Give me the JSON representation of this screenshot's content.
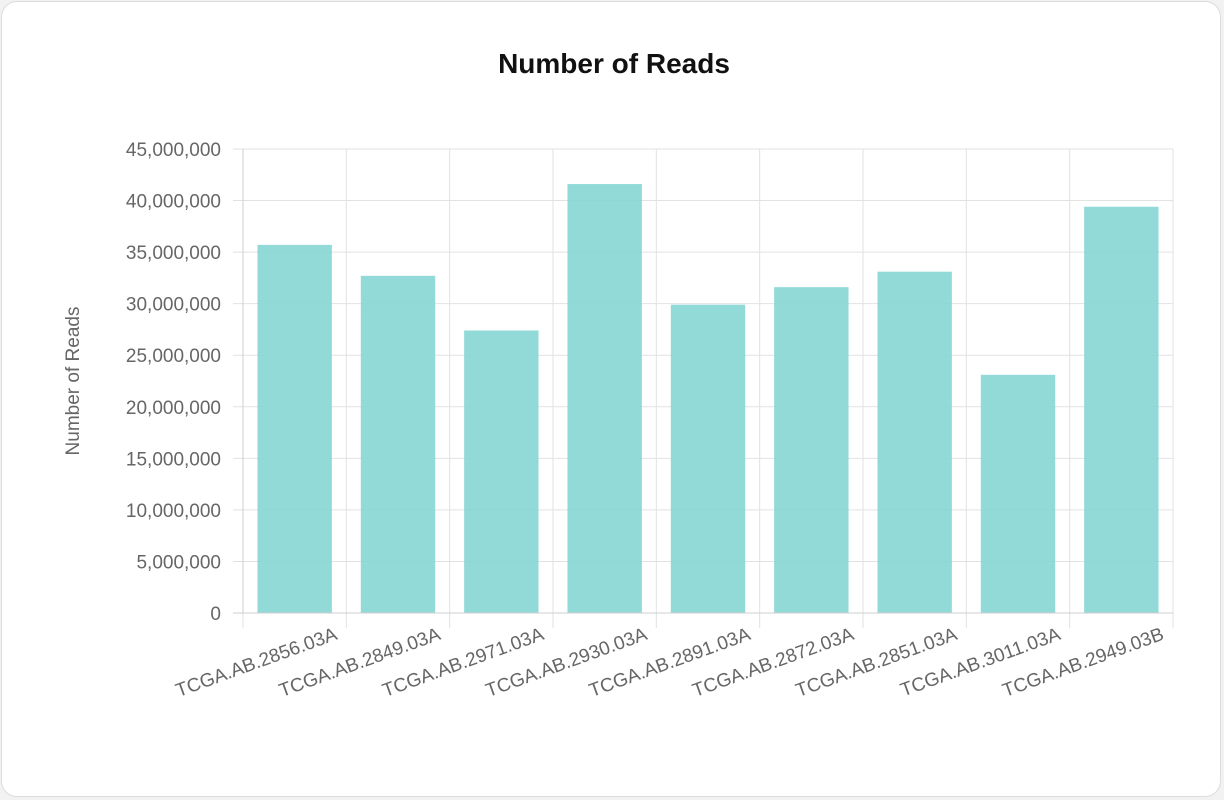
{
  "chart_data": {
    "type": "bar",
    "title": "Number of Reads",
    "xlabel": "",
    "ylabel": "Number of Reads",
    "categories": [
      "TCGA.AB.2856.03A",
      "TCGA.AB.2849.03A",
      "TCGA.AB.2971.03A",
      "TCGA.AB.2930.03A",
      "TCGA.AB.2891.03A",
      "TCGA.AB.2872.03A",
      "TCGA.AB.2851.03A",
      "TCGA.AB.3011.03A",
      "TCGA.AB.2949.03B"
    ],
    "values": [
      35700000,
      32700000,
      27400000,
      41600000,
      29900000,
      31600000,
      33100000,
      23100000,
      39400000
    ],
    "ylim": [
      0,
      45000000
    ],
    "yticks": [
      0,
      5000000,
      10000000,
      15000000,
      20000000,
      25000000,
      30000000,
      35000000,
      40000000,
      45000000
    ],
    "ytick_labels": [
      "0",
      "5,000,000",
      "10,000,000",
      "15,000,000",
      "20,000,000",
      "25,000,000",
      "30,000,000",
      "35,000,000",
      "40,000,000",
      "45,000,000"
    ],
    "grid": true,
    "legend": "none",
    "bar_color": "#83d5d2",
    "grid_color": "#e2e2e2"
  }
}
